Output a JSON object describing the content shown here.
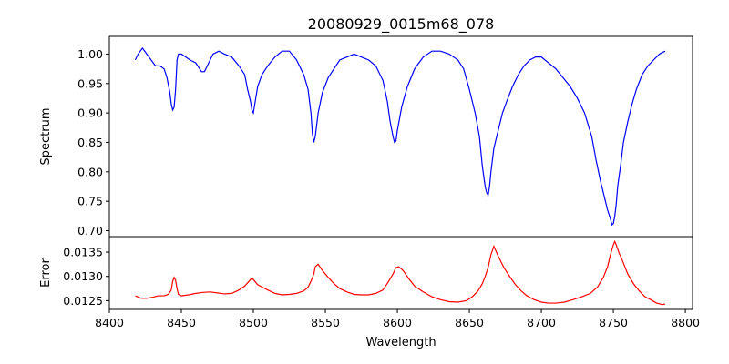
{
  "chart_data": [
    {
      "type": "line",
      "panel": "top",
      "title": "20080929_0015m68_078",
      "ylabel": "Spectrum",
      "xlabel": "",
      "xlim": [
        8400,
        8805
      ],
      "ylim": [
        0.69,
        1.03
      ],
      "yticks": [
        "0.70",
        "0.75",
        "0.80",
        "0.85",
        "0.90",
        "0.95",
        "1.00"
      ],
      "grid": false,
      "series": [
        {
          "color": "#0000ff",
          "x": [
            8418,
            8420,
            8423,
            8426,
            8429,
            8432,
            8435,
            8438,
            8440,
            8442,
            8443,
            8444,
            8445,
            8446,
            8447,
            8448,
            8450,
            8453,
            8456,
            8460,
            8464,
            8466,
            8468,
            8472,
            8476,
            8480,
            8485,
            8490,
            8494,
            8496,
            8498,
            8499,
            8500,
            8501,
            8503,
            8506,
            8510,
            8515,
            8520,
            8525,
            8530,
            8535,
            8538,
            8540,
            8541,
            8542,
            8543,
            8545,
            8548,
            8552,
            8556,
            8560,
            8565,
            8570,
            8575,
            8580,
            8585,
            8590,
            8593,
            8595,
            8597,
            8598,
            8599,
            8600,
            8603,
            8607,
            8612,
            8618,
            8624,
            8630,
            8636,
            8642,
            8646,
            8650,
            8654,
            8657,
            8659,
            8661,
            8662,
            8663,
            8664,
            8665,
            8667,
            8670,
            8673,
            8676,
            8680,
            8684,
            8688,
            8692,
            8696,
            8700,
            8705,
            8710,
            8715,
            8720,
            8725,
            8730,
            8735,
            8738,
            8741,
            8744,
            8746,
            8748,
            8749,
            8750,
            8751,
            8752,
            8753,
            8755,
            8757,
            8760,
            8763,
            8766,
            8770,
            8774,
            8778,
            8782,
            8786
          ],
          "values": [
            0.99,
            1.0,
            1.01,
            1.0,
            0.99,
            0.98,
            0.98,
            0.975,
            0.96,
            0.935,
            0.915,
            0.905,
            0.91,
            0.94,
            0.99,
            1.0,
            1.0,
            0.995,
            0.99,
            0.985,
            0.97,
            0.97,
            0.98,
            1.0,
            1.005,
            1.0,
            0.995,
            0.98,
            0.965,
            0.94,
            0.92,
            0.905,
            0.9,
            0.915,
            0.945,
            0.965,
            0.98,
            0.995,
            1.005,
            1.005,
            0.99,
            0.965,
            0.94,
            0.9,
            0.865,
            0.85,
            0.86,
            0.9,
            0.935,
            0.96,
            0.975,
            0.99,
            0.995,
            1.0,
            0.995,
            0.99,
            0.98,
            0.955,
            0.92,
            0.885,
            0.86,
            0.85,
            0.852,
            0.87,
            0.91,
            0.945,
            0.975,
            0.995,
            1.005,
            1.005,
            1.0,
            0.99,
            0.975,
            0.94,
            0.9,
            0.86,
            0.81,
            0.775,
            0.765,
            0.76,
            0.775,
            0.8,
            0.84,
            0.87,
            0.9,
            0.92,
            0.945,
            0.965,
            0.98,
            0.99,
            0.995,
            0.995,
            0.985,
            0.975,
            0.96,
            0.945,
            0.925,
            0.9,
            0.86,
            0.82,
            0.785,
            0.755,
            0.735,
            0.72,
            0.71,
            0.712,
            0.725,
            0.745,
            0.775,
            0.81,
            0.85,
            0.885,
            0.915,
            0.94,
            0.965,
            0.98,
            0.99,
            1.0,
            1.005
          ]
        }
      ]
    },
    {
      "type": "line",
      "panel": "bottom",
      "title": "",
      "ylabel": "Error",
      "xlabel": "Wavelength",
      "xlim": [
        8400,
        8805
      ],
      "ylim": [
        0.01232,
        0.01382
      ],
      "xticks": [
        "8400",
        "8450",
        "8500",
        "8550",
        "8600",
        "8650",
        "8700",
        "8750",
        "8800"
      ],
      "yticks": [
        "0.0125",
        "0.0130",
        "0.0135"
      ],
      "grid": false,
      "series": [
        {
          "color": "#ff0000",
          "x": [
            8418,
            8422,
            8426,
            8430,
            8434,
            8438,
            8441,
            8443,
            8444,
            8445,
            8446,
            8447,
            8448,
            8450,
            8455,
            8460,
            8465,
            8470,
            8475,
            8480,
            8485,
            8490,
            8494,
            8497,
            8499,
            8501,
            8503,
            8506,
            8510,
            8515,
            8520,
            8525,
            8530,
            8535,
            8538,
            8540,
            8542,
            8543,
            8545,
            8548,
            8552,
            8556,
            8560,
            8565,
            8570,
            8575,
            8580,
            8585,
            8590,
            8594,
            8597,
            8599,
            8601,
            8604,
            8608,
            8612,
            8618,
            8624,
            8630,
            8636,
            8642,
            8648,
            8652,
            8656,
            8659,
            8661,
            8663,
            8665,
            8667,
            8670,
            8674,
            8678,
            8682,
            8686,
            8690,
            8695,
            8700,
            8705,
            8710,
            8716,
            8722,
            8728,
            8734,
            8739,
            8743,
            8746,
            8748,
            8750,
            8751,
            8752,
            8754,
            8756,
            8758,
            8760,
            8764,
            8768,
            8772,
            8776,
            8780,
            8784,
            8786
          ],
          "values": [
            0.0126,
            0.01255,
            0.01255,
            0.01257,
            0.0126,
            0.0126,
            0.01263,
            0.01272,
            0.0129,
            0.01298,
            0.01292,
            0.01275,
            0.01263,
            0.0126,
            0.01262,
            0.01265,
            0.01267,
            0.01268,
            0.01266,
            0.01264,
            0.01265,
            0.01272,
            0.0128,
            0.0129,
            0.01297,
            0.0129,
            0.01283,
            0.01278,
            0.01272,
            0.01265,
            0.01262,
            0.01263,
            0.01265,
            0.0127,
            0.01278,
            0.0129,
            0.01305,
            0.0132,
            0.01325,
            0.01312,
            0.01298,
            0.01285,
            0.01275,
            0.01268,
            0.01263,
            0.01262,
            0.01262,
            0.01265,
            0.01272,
            0.0129,
            0.01305,
            0.01318,
            0.0132,
            0.01312,
            0.01295,
            0.0128,
            0.01268,
            0.01258,
            0.01252,
            0.01248,
            0.01247,
            0.0125,
            0.01258,
            0.0127,
            0.01285,
            0.013,
            0.01318,
            0.01345,
            0.01362,
            0.01342,
            0.01318,
            0.013,
            0.01283,
            0.0127,
            0.0126,
            0.01252,
            0.01247,
            0.01245,
            0.01245,
            0.01247,
            0.01252,
            0.01258,
            0.01265,
            0.01278,
            0.01298,
            0.0132,
            0.01345,
            0.01365,
            0.01372,
            0.01365,
            0.01348,
            0.01335,
            0.0132,
            0.01305,
            0.01285,
            0.0127,
            0.01258,
            0.01252,
            0.01245,
            0.01242,
            0.01243
          ]
        }
      ]
    }
  ]
}
